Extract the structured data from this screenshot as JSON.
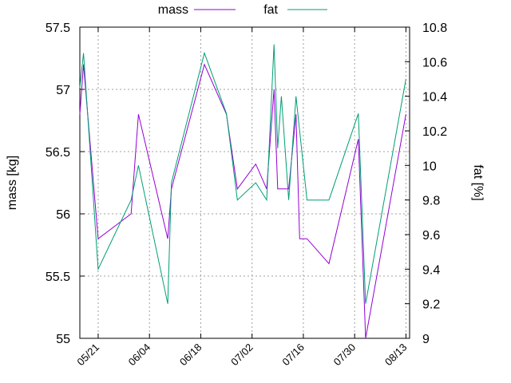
{
  "chart_data": {
    "type": "line",
    "legend_position": "top",
    "grid": true,
    "ylabel": "mass [kg]",
    "y2label": "fat [%]",
    "ylim": [
      55,
      57.5
    ],
    "y2lim": [
      9,
      10.8
    ],
    "yticks": [
      55,
      55.5,
      56,
      56.5,
      57,
      57.5
    ],
    "yticklabels": [
      "55",
      "55.5",
      "56",
      "56.5",
      "57",
      "57.5"
    ],
    "y2ticks": [
      9,
      9.2,
      9.4,
      9.6,
      9.8,
      10,
      10.2,
      10.4,
      10.6,
      10.8
    ],
    "y2ticklabels": [
      "9",
      "9.2",
      "9.4",
      "9.6",
      "9.8",
      "10",
      "10.2",
      "10.4",
      "10.6",
      "10.8"
    ],
    "xlim": [
      "05/16",
      "08/14"
    ],
    "xticks": [
      "05/21",
      "06/04",
      "06/18",
      "07/02",
      "07/16",
      "07/30",
      "08/13"
    ],
    "series": [
      {
        "name": "mass",
        "axis": "left",
        "color": "#9400d3",
        "x": [
          "05/16",
          "05/17",
          "05/21",
          "05/30",
          "06/01",
          "06/09",
          "06/10",
          "06/19",
          "06/25",
          "06/28",
          "07/03",
          "07/06",
          "07/08",
          "07/09",
          "07/10",
          "07/12",
          "07/14",
          "07/15",
          "07/17",
          "07/23",
          "07/31",
          "08/02",
          "08/13"
        ],
        "y": [
          56.8,
          57.2,
          55.8,
          56.0,
          56.8,
          55.8,
          56.2,
          57.2,
          56.8,
          56.2,
          56.4,
          56.2,
          57.0,
          56.2,
          56.2,
          56.2,
          56.8,
          55.8,
          55.8,
          55.6,
          56.6,
          55.0,
          56.8
        ]
      },
      {
        "name": "fat",
        "axis": "right",
        "color": "#009e73",
        "x": [
          "05/16",
          "05/17",
          "05/21",
          "05/30",
          "06/01",
          "06/09",
          "06/10",
          "06/19",
          "06/25",
          "06/28",
          "07/03",
          "07/06",
          "07/08",
          "07/09",
          "07/10",
          "07/12",
          "07/14",
          "07/15",
          "07/17",
          "07/23",
          "07/31",
          "08/02",
          "08/13"
        ],
        "y": [
          10.45,
          10.65,
          9.4,
          9.8,
          10.0,
          9.2,
          9.9,
          10.65,
          10.3,
          9.8,
          9.9,
          9.8,
          10.7,
          10.1,
          10.4,
          9.8,
          10.4,
          10.2,
          9.8,
          9.8,
          10.3,
          9.2,
          10.5
        ]
      }
    ]
  }
}
